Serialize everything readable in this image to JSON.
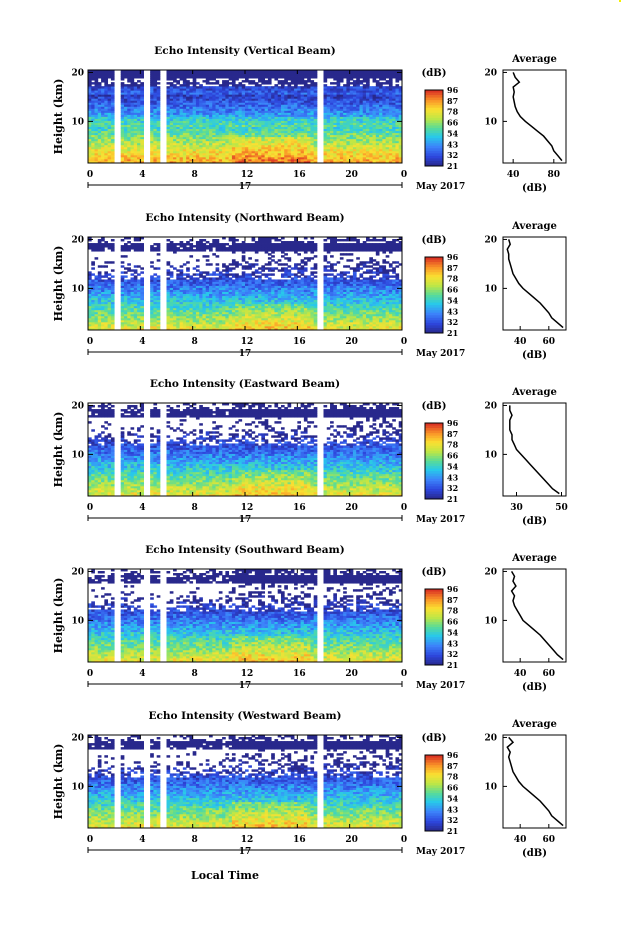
{
  "figure": {
    "shared_xlabel": "Local Time",
    "date_label": "May 2017",
    "day_label": "17",
    "colorbar_unit": "(dB)",
    "colorbar_ticks": [
      "96",
      "87",
      "78",
      "66",
      "54",
      "43",
      "32",
      "21"
    ],
    "profile_title": "Average",
    "profile_xlabel": "(dB)"
  },
  "chart_data": [
    {
      "type": "heatmap",
      "title": "Echo Intensity (Vertical Beam)",
      "ylabel": "Height (km)",
      "xticks": [
        "0",
        "4",
        "8",
        "12",
        "16",
        "20",
        "0"
      ],
      "xlim": [
        0,
        24
      ],
      "yticks": [
        "20",
        "10"
      ],
      "ylim": [
        1.5,
        20.5
      ],
      "colorbar_range": [
        21,
        96
      ],
      "data_gaps_hours": [
        [
          2.0,
          2.4
        ],
        [
          4.3,
          4.7
        ],
        [
          5.5,
          5.9
        ],
        [
          17.6,
          18.0
        ]
      ],
      "profile": {
        "title": "Average",
        "xticks": [
          "40",
          "80"
        ],
        "xlim": [
          30,
          92
        ],
        "yticks": [
          "20",
          "10"
        ],
        "height_km": [
          2,
          3,
          4,
          5,
          6,
          7,
          8,
          9,
          10,
          11,
          12,
          13,
          14,
          15,
          16,
          17,
          18,
          19,
          20
        ],
        "values": [
          88,
          84,
          80,
          78,
          74,
          70,
          64,
          58,
          52,
          47,
          44,
          42,
          41,
          40,
          41,
          40,
          46,
          42,
          40
        ]
      }
    },
    {
      "type": "heatmap",
      "title": "Echo Intensity (Northward Beam)",
      "ylabel": "Height (km)",
      "xticks": [
        "0",
        "4",
        "8",
        "12",
        "16",
        "20",
        "0"
      ],
      "xlim": [
        0,
        24
      ],
      "yticks": [
        "20",
        "10"
      ],
      "ylim": [
        1.5,
        20.5
      ],
      "colorbar_range": [
        21,
        96
      ],
      "data_gaps_hours": [
        [
          2.0,
          2.4
        ],
        [
          4.3,
          4.7
        ],
        [
          5.5,
          5.9
        ],
        [
          17.6,
          18.0
        ]
      ],
      "profile": {
        "title": "Average",
        "xticks": [
          "40",
          "60"
        ],
        "xlim": [
          28,
          72
        ],
        "yticks": [
          "20",
          "10"
        ],
        "height_km": [
          2,
          3,
          4,
          5,
          6,
          7,
          8,
          9,
          10,
          11,
          12,
          13,
          14,
          15,
          16,
          17,
          18,
          19,
          20
        ],
        "values": [
          70,
          66,
          62,
          60,
          57,
          54,
          50,
          46,
          42,
          39,
          37,
          35,
          34,
          33,
          32,
          32,
          31,
          33,
          32
        ]
      }
    },
    {
      "type": "heatmap",
      "title": "Echo Intensity (Eastward Beam)",
      "ylabel": "Height (km)",
      "xticks": [
        "0",
        "4",
        "8",
        "12",
        "16",
        "20",
        "0"
      ],
      "xlim": [
        0,
        24
      ],
      "yticks": [
        "20",
        "10"
      ],
      "ylim": [
        1.5,
        20.5
      ],
      "colorbar_range": [
        21,
        96
      ],
      "data_gaps_hours": [
        [
          2.0,
          2.4
        ],
        [
          4.3,
          4.7
        ],
        [
          5.5,
          5.9
        ],
        [
          17.6,
          18.0
        ]
      ],
      "profile": {
        "title": "Average",
        "xticks": [
          "30",
          "50"
        ],
        "xlim": [
          24,
          52
        ],
        "yticks": [
          "20",
          "10"
        ],
        "height_km": [
          2,
          3,
          4,
          5,
          6,
          7,
          8,
          9,
          10,
          11,
          12,
          13,
          14,
          15,
          16,
          17,
          18,
          19,
          20
        ],
        "values": [
          49,
          46,
          44,
          42,
          40,
          38,
          36,
          34,
          32,
          30,
          29,
          28,
          28,
          27,
          27,
          27,
          28,
          27,
          27
        ]
      }
    },
    {
      "type": "heatmap",
      "title": "Echo Intensity (Southward Beam)",
      "ylabel": "Height (km)",
      "xticks": [
        "0",
        "4",
        "8",
        "12",
        "16",
        "20",
        "0"
      ],
      "xlim": [
        0,
        24
      ],
      "yticks": [
        "20",
        "10"
      ],
      "ylim": [
        1.5,
        20.5
      ],
      "colorbar_range": [
        21,
        96
      ],
      "data_gaps_hours": [
        [
          2.0,
          2.4
        ],
        [
          4.3,
          4.7
        ],
        [
          5.5,
          5.9
        ],
        [
          17.6,
          18.0
        ]
      ],
      "profile": {
        "title": "Average",
        "xticks": [
          "40",
          "60"
        ],
        "xlim": [
          28,
          72
        ],
        "yticks": [
          "20",
          "10"
        ],
        "height_km": [
          2,
          3,
          4,
          5,
          6,
          7,
          8,
          9,
          10,
          11,
          12,
          13,
          14,
          15,
          16,
          17,
          18,
          19,
          20
        ],
        "values": [
          70,
          66,
          63,
          60,
          57,
          54,
          50,
          46,
          42,
          40,
          38,
          36,
          35,
          36,
          34,
          37,
          35,
          36,
          34
        ]
      }
    },
    {
      "type": "heatmap",
      "title": "Echo Intensity (Westward Beam)",
      "ylabel": "Height (km)",
      "xticks": [
        "0",
        "4",
        "8",
        "12",
        "16",
        "20",
        "0"
      ],
      "xlim": [
        0,
        24
      ],
      "yticks": [
        "20",
        "10"
      ],
      "ylim": [
        1.5,
        20.5
      ],
      "colorbar_range": [
        21,
        96
      ],
      "data_gaps_hours": [
        [
          2.0,
          2.4
        ],
        [
          4.3,
          4.7
        ],
        [
          5.5,
          5.9
        ],
        [
          17.6,
          18.0
        ]
      ],
      "profile": {
        "title": "Average",
        "xticks": [
          "40",
          "60"
        ],
        "xlim": [
          28,
          72
        ],
        "yticks": [
          "20",
          "10"
        ],
        "height_km": [
          2,
          3,
          4,
          5,
          6,
          7,
          8,
          9,
          10,
          11,
          12,
          13,
          14,
          15,
          16,
          17,
          18,
          19,
          20
        ],
        "values": [
          70,
          66,
          62,
          60,
          57,
          54,
          50,
          46,
          42,
          39,
          37,
          35,
          34,
          33,
          32,
          33,
          31,
          35,
          32
        ]
      }
    }
  ]
}
